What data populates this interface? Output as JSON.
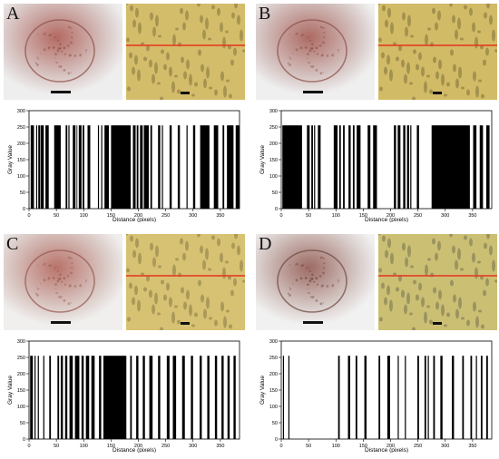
{
  "panels": [
    {
      "letter": "A",
      "photo_left": {
        "bg": "#d9c8c6",
        "crater": "#b36a62",
        "rim": "#8f4f48",
        "surround": "#eeeeee"
      },
      "photo_right": {
        "bg": "#d4bd6a",
        "pore": "#9a8a4a"
      },
      "chart_data": {
        "type": "bar",
        "ylabel": "Gray Value",
        "xlabel": "Distance (pixels)",
        "xlim": [
          0,
          385
        ],
        "ylim": [
          0,
          300
        ],
        "xticks": [
          0,
          50,
          100,
          150,
          200,
          250,
          300,
          350
        ],
        "yticks": [
          0,
          50,
          100,
          150,
          200,
          250,
          300
        ],
        "value_high": 255,
        "black_segments": [
          [
            3,
            9
          ],
          [
            13,
            15
          ],
          [
            17,
            20
          ],
          [
            21,
            27
          ],
          [
            30,
            36
          ],
          [
            46,
            58
          ],
          [
            67,
            70
          ],
          [
            72,
            74
          ],
          [
            80,
            85
          ],
          [
            87,
            88
          ],
          [
            91,
            96
          ],
          [
            98,
            101
          ],
          [
            107,
            112
          ],
          [
            126,
            128
          ],
          [
            132,
            134
          ],
          [
            138,
            146
          ],
          [
            150,
            186
          ],
          [
            190,
            195
          ],
          [
            197,
            200
          ],
          [
            203,
            208
          ],
          [
            210,
            219
          ],
          [
            222,
            225
          ],
          [
            236,
            240
          ],
          [
            243,
            245
          ],
          [
            257,
            261
          ],
          [
            272,
            276
          ],
          [
            288,
            290
          ],
          [
            300,
            304
          ],
          [
            313,
            330
          ],
          [
            338,
            346
          ],
          [
            354,
            357
          ],
          [
            362,
            374
          ],
          [
            378,
            385
          ]
        ]
      }
    },
    {
      "letter": "B",
      "photo_left": {
        "bg": "#d6c6c4",
        "crater": "#ad6a63",
        "rim": "#8b4e48",
        "surround": "#efefef"
      },
      "photo_right": {
        "bg": "#d2bb66",
        "pore": "#978748"
      },
      "chart_data": {
        "type": "bar",
        "ylabel": "Gray Value",
        "xlabel": "Distance (pixels)",
        "xlim": [
          0,
          385
        ],
        "ylim": [
          0,
          300
        ],
        "xticks": [
          0,
          50,
          100,
          150,
          200,
          250,
          300,
          350
        ],
        "yticks": [
          0,
          50,
          100,
          150,
          200,
          250,
          300
        ],
        "value_high": 255,
        "black_segments": [
          [
            2,
            38
          ],
          [
            47,
            52
          ],
          [
            55,
            58
          ],
          [
            60,
            62
          ],
          [
            67,
            72
          ],
          [
            96,
            103
          ],
          [
            106,
            109
          ],
          [
            113,
            116
          ],
          [
            123,
            127
          ],
          [
            131,
            134
          ],
          [
            138,
            145
          ],
          [
            158,
            163
          ],
          [
            168,
            175
          ],
          [
            206,
            210
          ],
          [
            213,
            218
          ],
          [
            223,
            227
          ],
          [
            230,
            234
          ],
          [
            236,
            238
          ],
          [
            248,
            252
          ],
          [
            275,
            345
          ],
          [
            351,
            357
          ],
          [
            363,
            369
          ],
          [
            375,
            381
          ]
        ]
      }
    },
    {
      "letter": "C",
      "photo_left": {
        "bg": "#dbcbc7",
        "crater": "#b8736a",
        "rim": "#94564f",
        "surround": "#f0efee"
      },
      "photo_right": {
        "bg": "#d6c272",
        "pore": "#a08f52"
      },
      "chart_data": {
        "type": "bar",
        "ylabel": "Gray Value",
        "xlabel": "Distance (pixels)",
        "xlim": [
          0,
          385
        ],
        "ylim": [
          0,
          300
        ],
        "xticks": [
          0,
          50,
          100,
          150,
          200,
          250,
          300,
          350
        ],
        "yticks": [
          0,
          50,
          100,
          150,
          200,
          250,
          300
        ],
        "value_high": 255,
        "black_segments": [
          [
            2,
            7
          ],
          [
            10,
            12
          ],
          [
            16,
            18
          ],
          [
            26,
            28
          ],
          [
            37,
            40
          ],
          [
            52,
            55
          ],
          [
            58,
            62
          ],
          [
            66,
            70
          ],
          [
            74,
            80
          ],
          [
            84,
            92
          ],
          [
            96,
            100
          ],
          [
            104,
            110
          ],
          [
            114,
            120
          ],
          [
            128,
            132
          ],
          [
            136,
            178
          ],
          [
            185,
            188
          ],
          [
            196,
            200
          ],
          [
            208,
            212
          ],
          [
            220,
            226
          ],
          [
            236,
            240
          ],
          [
            252,
            257
          ],
          [
            263,
            269
          ],
          [
            280,
            285
          ],
          [
            296,
            300
          ],
          [
            312,
            316
          ],
          [
            326,
            330
          ],
          [
            340,
            344
          ],
          [
            352,
            356
          ],
          [
            363,
            367
          ],
          [
            374,
            378
          ]
        ]
      }
    },
    {
      "letter": "D",
      "photo_left": {
        "bg": "#d8cdca",
        "crater": "#9d6a63",
        "rim": "#6e4540",
        "surround": "#f1f1f1"
      },
      "photo_right": {
        "bg": "#cbbf74",
        "pore": "#8f8a5a"
      },
      "chart_data": {
        "type": "bar",
        "ylabel": "Gray Value",
        "xlabel": "Distance (pixels)",
        "xlim": [
          0,
          385
        ],
        "ylim": [
          0,
          300
        ],
        "xticks": [
          0,
          50,
          100,
          150,
          200,
          250,
          300,
          350
        ],
        "yticks": [
          0,
          50,
          100,
          150,
          200,
          250,
          300
        ],
        "value_high": 255,
        "black_segments": [
          [
            3,
            5
          ],
          [
            13,
            15
          ],
          [
            104,
            107
          ],
          [
            122,
            126
          ],
          [
            136,
            139
          ],
          [
            152,
            156
          ],
          [
            178,
            181
          ],
          [
            194,
            199
          ],
          [
            213,
            215
          ],
          [
            226,
            228
          ],
          [
            249,
            252
          ],
          [
            262,
            265
          ],
          [
            268,
            270
          ],
          [
            278,
            281
          ],
          [
            291,
            295
          ],
          [
            312,
            316
          ],
          [
            331,
            334
          ],
          [
            346,
            349
          ],
          [
            356,
            358
          ],
          [
            365,
            368
          ],
          [
            375,
            378
          ]
        ]
      }
    }
  ]
}
